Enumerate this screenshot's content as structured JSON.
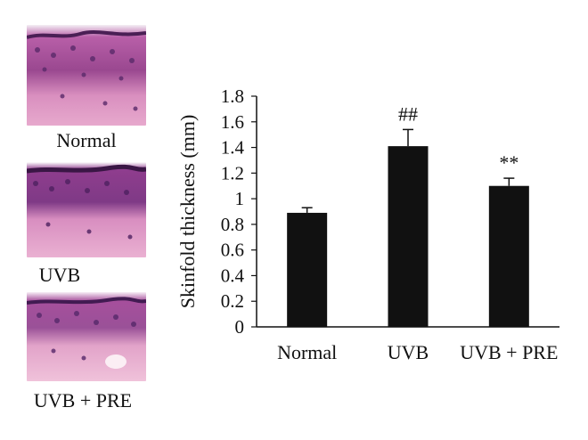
{
  "histology": {
    "panels": [
      {
        "label": "Normal"
      },
      {
        "label": "UVB"
      },
      {
        "label": "UVB + PRE"
      }
    ]
  },
  "chart_data": {
    "type": "bar",
    "categories": [
      "Normal",
      "UVB",
      "UVB + PRE"
    ],
    "values": [
      0.89,
      1.41,
      1.1
    ],
    "error": [
      0.04,
      0.13,
      0.06
    ],
    "annotations": [
      "",
      "##",
      "**"
    ],
    "title": "",
    "xlabel": "",
    "ylabel": "Skinfold thickness (mm)",
    "ylim": [
      0,
      1.8
    ],
    "yticks": [
      "0",
      "0.2",
      "0.4",
      "0.6",
      "0.8",
      "1",
      "1.2",
      "1.4",
      "1.6",
      "1.8"
    ],
    "grid": false,
    "legend": false,
    "bar_color": "#111111"
  }
}
